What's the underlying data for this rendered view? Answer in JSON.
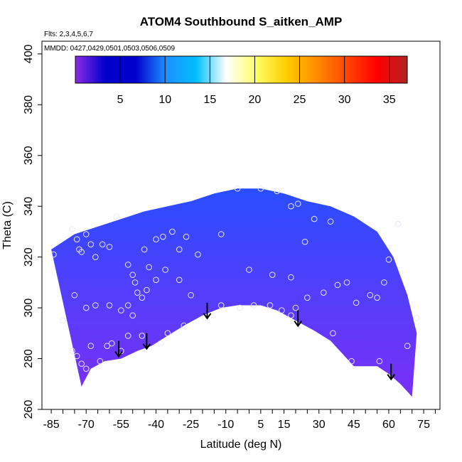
{
  "chart_data": {
    "type": "heatmap",
    "title": "ATOM4 Southbound S_aitken_AMP",
    "annotations": [
      "Flts: 2,3,4,5,6,7",
      "MMDD: 0427,0429,0501,0503,0506,0509"
    ],
    "xlabel": "Latitude (deg N)",
    "ylabel": "Theta (C)",
    "xlim": [
      -89,
      82
    ],
    "ylim": [
      260,
      405
    ],
    "x_ticks": [
      -85,
      -70,
      -55,
      -40,
      -25,
      -10,
      5,
      15,
      30,
      45,
      60,
      75
    ],
    "x_tick_labels": [
      "-85",
      "-70",
      "-55",
      "-40",
      "-25",
      "-10",
      "5",
      "15",
      "30",
      "45",
      "60",
      "75"
    ],
    "y_ticks": [
      260,
      280,
      300,
      320,
      340,
      360,
      380,
      400
    ],
    "y_tick_labels": [
      "260",
      "280",
      "300",
      "320",
      "340",
      "360",
      "380",
      "400"
    ],
    "colorbar": {
      "min": 0,
      "max": 37,
      "ticks": [
        5,
        10,
        15,
        20,
        25,
        30,
        35
      ],
      "tick_labels": [
        "5",
        "10",
        "15",
        "20",
        "25",
        "30",
        "35"
      ],
      "colors": [
        "#8a2be2",
        "#0000cd",
        "#0000cd",
        "#1e90ff",
        "#00bfff",
        "#ffffff",
        "#ffff66",
        "#ffcc00",
        "#ff8c00",
        "#ff4500",
        "#ff0000",
        "#b22222"
      ]
    },
    "field_color_low": "#7b2ff7",
    "field_color_high": "#2a4dff",
    "domain": {
      "lower_boundary": [
        [
          -72,
          269
        ],
        [
          -68,
          276
        ],
        [
          -62,
          279
        ],
        [
          -55,
          280
        ],
        [
          -48,
          283
        ],
        [
          -42,
          285
        ],
        [
          -35,
          289
        ],
        [
          -28,
          293
        ],
        [
          -20,
          297
        ],
        [
          -12,
          300
        ],
        [
          -5,
          301
        ],
        [
          5,
          301
        ],
        [
          12,
          299
        ],
        [
          20,
          295
        ],
        [
          28,
          291
        ],
        [
          35,
          287
        ],
        [
          40,
          282
        ],
        [
          45,
          277
        ],
        [
          55,
          277
        ],
        [
          60,
          274
        ],
        [
          65,
          270
        ],
        [
          70,
          265
        ]
      ],
      "upper_boundary": [
        [
          -85,
          323
        ],
        [
          -75,
          329
        ],
        [
          -65,
          332
        ],
        [
          -55,
          335
        ],
        [
          -45,
          338
        ],
        [
          -35,
          340
        ],
        [
          -25,
          342
        ],
        [
          -15,
          345
        ],
        [
          -5,
          347
        ],
        [
          5,
          347
        ],
        [
          15,
          345
        ],
        [
          25,
          342
        ],
        [
          35,
          340
        ],
        [
          45,
          336
        ],
        [
          55,
          330
        ],
        [
          62,
          320
        ],
        [
          68,
          305
        ],
        [
          72,
          290
        ]
      ]
    },
    "observations": [
      [
        -84,
        321
      ],
      [
        -76,
        331
      ],
      [
        -74,
        327
      ],
      [
        -73,
        323
      ],
      [
        -72,
        322
      ],
      [
        -70,
        329
      ],
      [
        -68,
        325
      ],
      [
        -66,
        320
      ],
      [
        -63,
        325
      ],
      [
        -60,
        324
      ],
      [
        -57,
        336
      ],
      [
        -52,
        317
      ],
      [
        -50,
        313
      ],
      [
        -49,
        310
      ],
      [
        -48,
        306
      ],
      [
        -46,
        304
      ],
      [
        -45,
        323
      ],
      [
        -43,
        316
      ],
      [
        -40,
        327
      ],
      [
        -37,
        328
      ],
      [
        -33,
        330
      ],
      [
        -30,
        323
      ],
      [
        -27,
        328
      ],
      [
        -22,
        321
      ],
      [
        -12,
        329
      ],
      [
        -5,
        347
      ],
      [
        5,
        347
      ],
      [
        12,
        346
      ],
      [
        18,
        340
      ],
      [
        21,
        341
      ],
      [
        24,
        326
      ],
      [
        28,
        335
      ],
      [
        35,
        334
      ],
      [
        -75,
        305
      ],
      [
        -70,
        300
      ],
      [
        -66,
        301
      ],
      [
        -60,
        301
      ],
      [
        -55,
        299
      ],
      [
        -52,
        301
      ],
      [
        -50,
        297
      ],
      [
        -44,
        307
      ],
      [
        -40,
        311
      ],
      [
        -36,
        315
      ],
      [
        -30,
        311
      ],
      [
        -25,
        305
      ],
      [
        -19,
        296
      ],
      [
        -12,
        301
      ],
      [
        -4,
        300
      ],
      [
        2,
        301
      ],
      [
        9,
        301
      ],
      [
        14,
        299
      ],
      [
        18,
        297
      ],
      [
        20,
        300
      ],
      [
        25,
        304
      ],
      [
        32,
        306
      ],
      [
        38,
        309
      ],
      [
        42,
        310
      ],
      [
        46,
        302
      ],
      [
        52,
        305
      ],
      [
        55,
        304
      ],
      [
        58,
        310
      ],
      [
        60,
        319
      ],
      [
        64,
        333
      ],
      [
        -80,
        295
      ],
      [
        -76,
        283
      ],
      [
        -74,
        281
      ],
      [
        -72,
        278
      ],
      [
        -70,
        276
      ],
      [
        -68,
        285
      ],
      [
        -64,
        279
      ],
      [
        -61,
        285
      ],
      [
        -59,
        286
      ],
      [
        -55,
        283
      ],
      [
        -52,
        289
      ],
      [
        -46,
        289
      ],
      [
        -38,
        286
      ],
      [
        -35,
        290
      ],
      [
        -28,
        293
      ],
      [
        0,
        315
      ],
      [
        10,
        313
      ],
      [
        18,
        312
      ],
      [
        36,
        290
      ],
      [
        44,
        279
      ],
      [
        56,
        279
      ],
      [
        68,
        285
      ],
      [
        72,
        296
      ]
    ],
    "arrows": [
      [
        -56,
        287
      ],
      [
        -44,
        290
      ],
      [
        -18,
        302
      ],
      [
        21,
        299
      ],
      [
        61,
        278
      ]
    ]
  }
}
